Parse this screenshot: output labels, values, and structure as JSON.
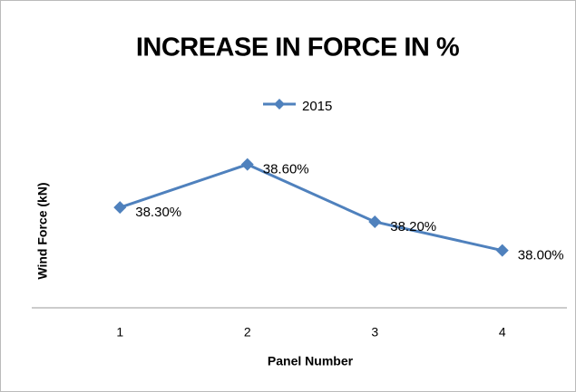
{
  "chart_data": {
    "type": "line",
    "title": "INCREASE IN FORCE IN %",
    "x_label": "Panel Number",
    "y_label": "Wind Force (kN)",
    "categories": [
      "1",
      "2",
      "3",
      "4"
    ],
    "series": [
      {
        "name": "2015",
        "color": "#4f81bd",
        "values": [
          38.3,
          38.6,
          38.2,
          38.0
        ],
        "value_labels": [
          "38.30%",
          "38.60%",
          "38.20%",
          "38.00%"
        ]
      }
    ],
    "ylim": [
      37.6,
      38.8
    ],
    "legend": "top"
  }
}
